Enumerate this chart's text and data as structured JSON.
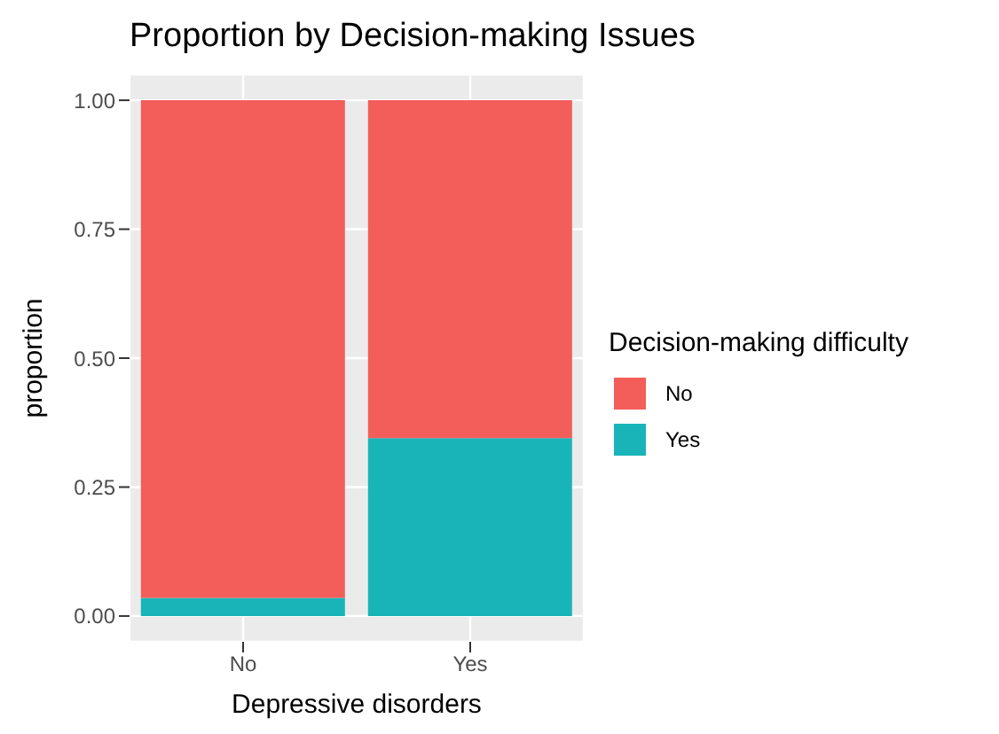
{
  "chart_data": {
    "type": "bar",
    "title": "Proportion by Decision-making Issues",
    "xlabel": "Depressive disorders",
    "ylabel": "proportion",
    "legend_title": "Decision-making difficulty",
    "categories": [
      "No",
      "Yes"
    ],
    "stacked": true,
    "series": [
      {
        "name": "Yes",
        "color": "#19b4b8",
        "values": [
          0.035,
          0.345
        ]
      },
      {
        "name": "No",
        "color": "#f35e5a",
        "values": [
          0.965,
          0.655
        ]
      }
    ],
    "ylim": [
      -0.05,
      1.05
    ],
    "yticks": [
      {
        "value": 0,
        "label": "0.00"
      },
      {
        "value": 0.25,
        "label": "0.25"
      },
      {
        "value": 0.5,
        "label": "0.50"
      },
      {
        "value": 0.75,
        "label": "0.75"
      },
      {
        "value": 1,
        "label": "1.00"
      }
    ],
    "grid": true,
    "legend": "right"
  }
}
